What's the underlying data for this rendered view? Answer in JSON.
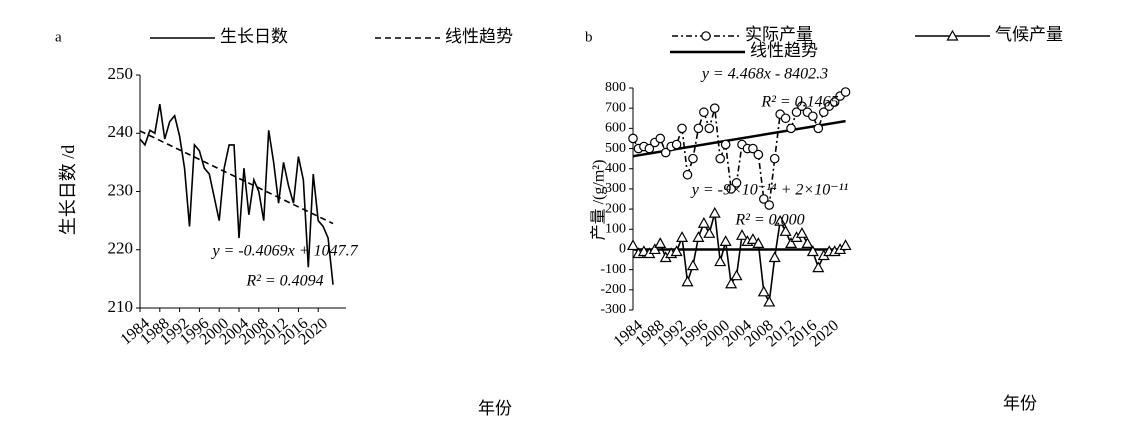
{
  "chart_data": [
    {
      "type": "line",
      "panel": "a",
      "ylabel": "生长日数 /d",
      "xlabel": "年份",
      "x": [
        1984,
        1985,
        1986,
        1987,
        1988,
        1989,
        1990,
        1991,
        1992,
        1993,
        1994,
        1995,
        1996,
        1997,
        1998,
        1999,
        2000,
        2001,
        2002,
        2003,
        2004,
        2005,
        2006,
        2007,
        2008,
        2009,
        2010,
        2011,
        2012,
        2013,
        2014,
        2015,
        2016,
        2017,
        2018,
        2019,
        2020,
        2021,
        2022,
        2023
      ],
      "series": [
        {
          "name": "生长日数",
          "color": "#000000",
          "style": "solid",
          "values": [
            239,
            238,
            240.5,
            240,
            245,
            239,
            242,
            243,
            239.5,
            234,
            224,
            238,
            237,
            234,
            233,
            229,
            225,
            234,
            238,
            238,
            222,
            234,
            226,
            232,
            230,
            225,
            240.5,
            235,
            228,
            235,
            231,
            228,
            236,
            232,
            217,
            233,
            225,
            224,
            222,
            214
          ]
        }
      ],
      "trends": [
        {
          "name": "线性趋势",
          "color": "#000000",
          "style": "dashed",
          "x": [
            1984,
            2023
          ],
          "values": [
            240.4,
            224.5
          ]
        }
      ],
      "annotations": [
        "y = -0.4069x + 1047.7",
        "R² = 0.4094"
      ],
      "xlim": [
        1984,
        2024
      ],
      "xticks": [
        1984,
        1988,
        1992,
        1996,
        2000,
        2004,
        2008,
        2012,
        2016,
        2020
      ],
      "ylim": [
        210,
        250
      ],
      "yticks": [
        210,
        220,
        230,
        240,
        250
      ]
    },
    {
      "type": "line",
      "panel": "b",
      "ylabel": "产量 /(g/m²)",
      "xlabel": "年份",
      "x": [
        1984,
        1985,
        1986,
        1987,
        1988,
        1989,
        1990,
        1991,
        1992,
        1993,
        1994,
        1995,
        1996,
        1997,
        1998,
        1999,
        2000,
        2001,
        2002,
        2003,
        2004,
        2005,
        2006,
        2007,
        2008,
        2009,
        2010,
        2011,
        2012,
        2013,
        2014,
        2015,
        2016,
        2017,
        2018,
        2019,
        2020,
        2021,
        2022,
        2023
      ],
      "series": [
        {
          "name": "实际产量",
          "color": "#000000",
          "style": "dashdot",
          "marker": "circle",
          "values": [
            550,
            500,
            510,
            500,
            530,
            550,
            480,
            510,
            520,
            600,
            370,
            450,
            600,
            680,
            600,
            700,
            450,
            520,
            300,
            330,
            520,
            500,
            500,
            470,
            250,
            220,
            450,
            670,
            650,
            600,
            680,
            710,
            680,
            660,
            600,
            680,
            710,
            730,
            760,
            780
          ]
        },
        {
          "name": "气候产量",
          "color": "#000000",
          "style": "solid",
          "marker": "triangle",
          "values": [
            20,
            -20,
            -10,
            -20,
            0,
            30,
            -40,
            -20,
            -10,
            60,
            -160,
            -80,
            60,
            130,
            80,
            180,
            -60,
            40,
            -170,
            -130,
            70,
            40,
            50,
            30,
            -210,
            -260,
            -40,
            140,
            90,
            30,
            60,
            80,
            30,
            -10,
            -90,
            -30,
            -10,
            -10,
            0,
            20
          ]
        }
      ],
      "trends": [
        {
          "name": "线性趋势",
          "color": "#000000",
          "style": "thick",
          "x": [
            1984,
            2023
          ],
          "values": [
            462,
            636
          ]
        },
        {
          "color": "#000000",
          "style": "thick",
          "x": [
            1984,
            2023
          ],
          "values": [
            0,
            0
          ]
        }
      ],
      "annotations": [
        "y = 4.468x - 8402.3",
        "R² = 0.1465",
        "y = -9×10⁻¹⁴ + 2×10⁻¹¹",
        "R² = 0.000"
      ],
      "xlim": [
        1984,
        2024
      ],
      "xticks": [
        1984,
        1988,
        1992,
        1996,
        2000,
        2004,
        2008,
        2012,
        2016,
        2020
      ],
      "ylim": [
        -300,
        800
      ],
      "yticks": [
        -300,
        -200,
        -100,
        0,
        100,
        200,
        300,
        400,
        500,
        600,
        700,
        800
      ]
    }
  ]
}
